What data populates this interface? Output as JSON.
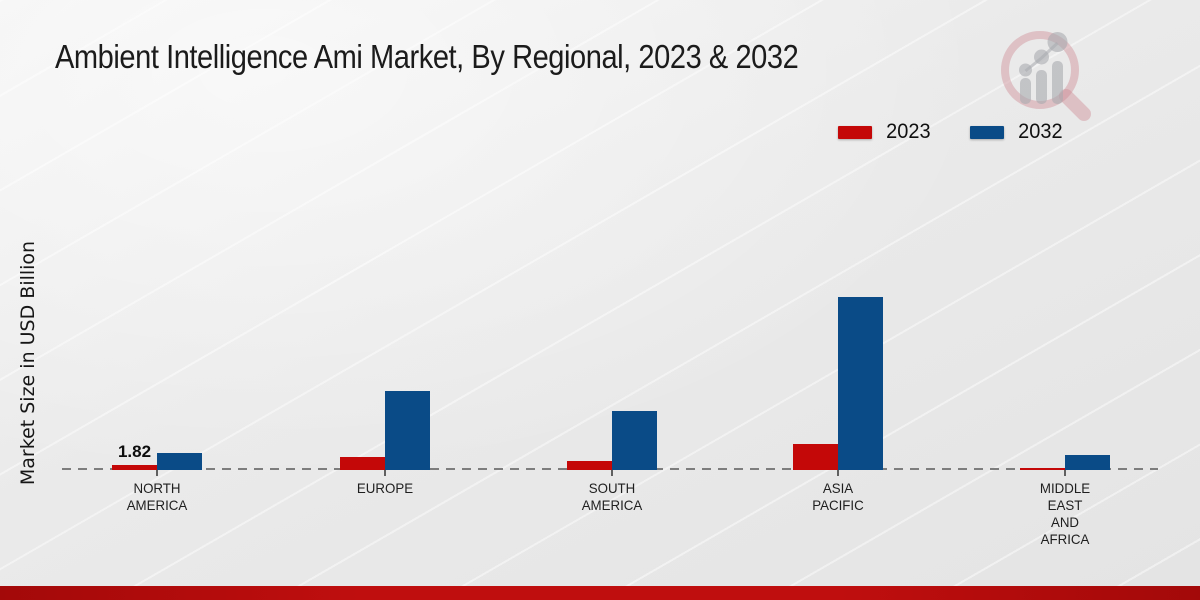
{
  "title": "Ambient Intelligence Ami Market, By Regional, 2023 & 2032",
  "y_axis": {
    "label": "Market Size in USD Billion"
  },
  "legend": {
    "items": [
      {
        "label": "2023",
        "color": "#c40808"
      },
      {
        "label": "2032",
        "color": "#0a4b87"
      }
    ]
  },
  "footer": {
    "bar_color": "#bf0e0e"
  },
  "logo": {
    "name": "market-research-future-watermark"
  },
  "chart_data": {
    "type": "bar",
    "categories": [
      "NORTH AMERICA",
      "EUROPE",
      "SOUTH AMERICA",
      "ASIA PACIFIC",
      "MIDDLE EAST AND AFRICA"
    ],
    "series": [
      {
        "name": "2023",
        "color": "#c40808",
        "values": [
          1.82,
          4.7,
          3.1,
          9.5,
          0.7
        ]
      },
      {
        "name": "2032",
        "color": "#0a4b87",
        "values": [
          6.2,
          28.8,
          21.5,
          63.0,
          5.5
        ]
      }
    ],
    "title": "Ambient Intelligence Ami Market, By Regional, 2023 & 2032",
    "xlabel": "",
    "ylabel": "Market Size in USD Billion",
    "ylim": [
      0,
      70
    ],
    "grid": false,
    "legend_position": "top-right",
    "baseline_style": "dashed",
    "data_labels": [
      {
        "series_index": 0,
        "category_index": 0,
        "text": "1.82"
      }
    ]
  }
}
